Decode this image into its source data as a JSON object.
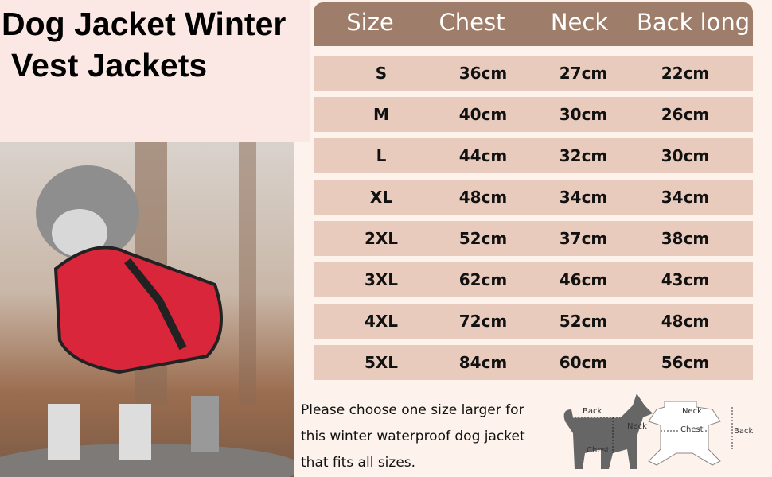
{
  "title": {
    "line1": "Dog Jacket Winter",
    "line2": "Vest Jackets"
  },
  "table": {
    "headers": [
      "Size",
      "Chest",
      "Neck",
      "Back long"
    ],
    "rows": [
      [
        "S",
        "36cm",
        "27cm",
        "22cm"
      ],
      [
        "M",
        "40cm",
        "30cm",
        "26cm"
      ],
      [
        "L",
        "44cm",
        "32cm",
        "30cm"
      ],
      [
        "XL",
        "48cm",
        "34cm",
        "34cm"
      ],
      [
        "2XL",
        "52cm",
        "37cm",
        "38cm"
      ],
      [
        "3XL",
        "62cm",
        "46cm",
        "43cm"
      ],
      [
        "4XL",
        "72cm",
        "52cm",
        "48cm"
      ],
      [
        "5XL",
        "84cm",
        "60cm",
        "56cm"
      ]
    ]
  },
  "note": {
    "lines": [
      "Please choose one size larger for",
      "this winter waterproof dog jacket",
      "that fits all sizes."
    ]
  },
  "diagram_dog": {
    "back": "Back",
    "neck": "Neck",
    "chest": "Chest"
  },
  "diagram_jacket": {
    "neck": "Neck",
    "chest": "Chest",
    "back": "Back"
  },
  "colors": {
    "header": "#9e7d6a",
    "row": "#e8cbbd",
    "jacket": "#d9263a"
  }
}
